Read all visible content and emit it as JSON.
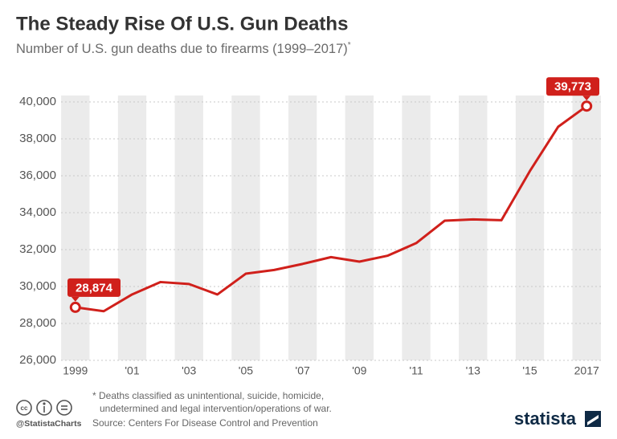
{
  "chart_data": {
    "type": "line",
    "title": "The Steady Rise Of U.S. Gun Deaths",
    "subtitle": "Number of U.S. gun deaths due to firearms (1999–2017)",
    "subtitle_mark": "*",
    "categories": [
      "1999",
      null,
      "'01",
      null,
      "'03",
      null,
      "'05",
      null,
      "'07",
      null,
      "'09",
      null,
      "'11",
      null,
      "'13",
      null,
      "'15",
      null,
      "2017"
    ],
    "series": [
      {
        "name": "Gun deaths",
        "color": "#d0201b",
        "values": [
          28874,
          28663,
          29573,
          30242,
          30136,
          29569,
          30694,
          30896,
          31224,
          31593,
          31347,
          31672,
          32351,
          33563,
          33636,
          33594,
          36252,
          38658,
          39773
        ],
        "value_labels": [
          "28,874",
          null,
          null,
          null,
          null,
          null,
          null,
          null,
          null,
          null,
          null,
          null,
          null,
          null,
          null,
          null,
          null,
          null,
          "39,773"
        ]
      }
    ],
    "ylim": [
      26000,
      40000
    ],
    "yticks": [
      {
        "value": 26000,
        "label": "26,000"
      },
      {
        "value": 28000,
        "label": "28,000"
      },
      {
        "value": 30000,
        "label": "30,000"
      },
      {
        "value": 32000,
        "label": "32,000"
      },
      {
        "value": 34000,
        "label": "34,000"
      },
      {
        "value": 36000,
        "label": "36,000"
      },
      {
        "value": 38000,
        "label": "38,000"
      },
      {
        "value": 40000,
        "label": "40,000"
      }
    ],
    "grid": true
  },
  "footer": {
    "notes": [
      "* Deaths classified as unintentional, suicide, homicide,",
      "undetermined and legal intervention/operations of war."
    ],
    "source": "Source: Centers For Disease Control and Prevention",
    "credit": "@StatistaCharts",
    "brand": "statista"
  }
}
